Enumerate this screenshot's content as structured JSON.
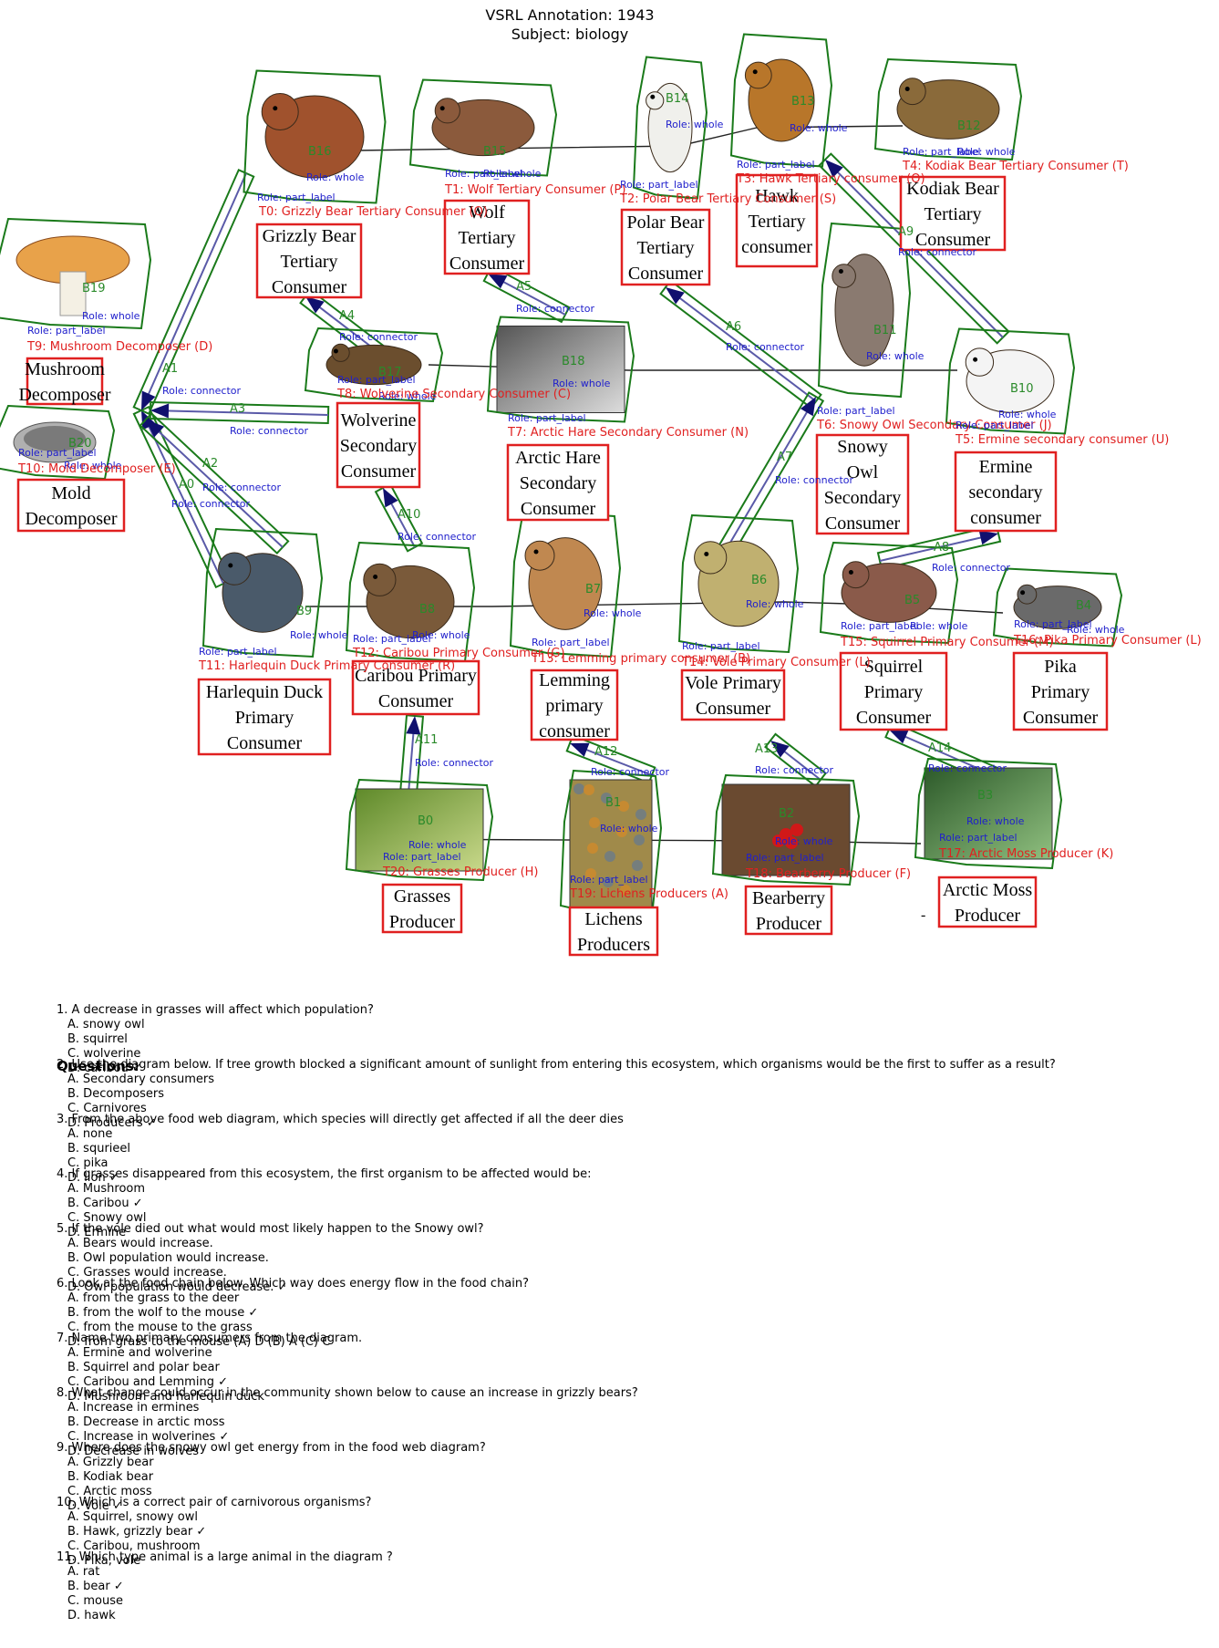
{
  "header": {
    "title_line1": "VSRL Annotation: 1943",
    "title_line2": "Subject: biology"
  },
  "colors": {
    "box": "#e02020",
    "outline": "#1a7a1a",
    "arrow": "#10106e",
    "tag_red": "#e02020",
    "tag_blue": "#2020cc",
    "tag_green": "#2a8a2a"
  },
  "organisms": [
    {
      "id": "grizzly",
      "box_lines": [
        "Grizzly Bear",
        "Tertiary",
        "Consumer"
      ],
      "blob": "B16",
      "tag": "T0: Grizzly Bear Tertiary Consumer (Q)",
      "icon": "bear-icon"
    },
    {
      "id": "wolf",
      "box_lines": [
        "Wolf",
        "Tertiary",
        "Consumer"
      ],
      "blob": "B15",
      "tag": "T1: Wolf Tertiary Consumer (P)",
      "icon": "wolf-icon"
    },
    {
      "id": "polar",
      "box_lines": [
        "Polar Bear",
        "Tertiary",
        "Consumer"
      ],
      "blob": "B14",
      "tag": "T2: Polar Bear Tertiary Consumer (S)",
      "icon": "polar-bear-icon"
    },
    {
      "id": "hawk",
      "box_lines": [
        "Hawk",
        "Tertiary",
        "consumer"
      ],
      "blob": "B13",
      "tag": "T3: Hawk Tertiary consumer (O)",
      "icon": "hawk-icon"
    },
    {
      "id": "kodiak",
      "box_lines": [
        "Kodiak Bear",
        "Tertiary",
        "Consumer"
      ],
      "blob": "B12",
      "tag": "T4: Kodiak Bear Tertiary Consumer (T)",
      "icon": "kodiak-bear-icon"
    },
    {
      "id": "mushroom",
      "box_lines": [
        "Mushroom",
        "Decomposer"
      ],
      "blob": "B19",
      "tag": "T9: Mushroom Decomposer (D)",
      "icon": "mushroom-icon"
    },
    {
      "id": "mold",
      "box_lines": [
        "Mold",
        "Decomposer"
      ],
      "blob": "B20",
      "tag": "T10: Mold Decomposer (E)",
      "icon": "mold-icon"
    },
    {
      "id": "wolverine",
      "box_lines": [
        "Wolverine",
        "Secondary",
        "Consumer"
      ],
      "blob": "B17",
      "tag": "T8: Wolverine Secondary Consumer (C)",
      "icon": "wolverine-icon"
    },
    {
      "id": "hare",
      "box_lines": [
        "Arctic Hare",
        "Secondary",
        "Consumer"
      ],
      "blob": "B18",
      "tag": "T7: Arctic Hare Secondary Consumer (N)",
      "icon": "hare-icon"
    },
    {
      "id": "owl",
      "box_lines": [
        "Snowy",
        "Owl",
        "Secondary",
        "Consumer"
      ],
      "blob": "B11",
      "tag": "T6: Snowy Owl Secondary Consumer (J)",
      "icon": "owl-icon"
    },
    {
      "id": "ermine",
      "box_lines": [
        "Ermine",
        "secondary",
        "consumer"
      ],
      "blob": "B10",
      "tag": "T5: Ermine secondary consumer (U)",
      "icon": "ermine-icon"
    },
    {
      "id": "duck",
      "box_lines": [
        "Harlequin Duck",
        "Primary",
        "Consumer"
      ],
      "blob": "B9",
      "tag": "T11: Harlequin Duck Primary Consumer (R)",
      "icon": "duck-icon"
    },
    {
      "id": "caribou",
      "box_lines": [
        "Caribou Primary",
        "Consumer"
      ],
      "blob": "B8",
      "tag": "T12: Caribou Primary Consumer (G)",
      "icon": "caribou-icon"
    },
    {
      "id": "lemming",
      "box_lines": [
        "Lemming",
        "primary",
        "consumer"
      ],
      "blob": "B7",
      "tag": "T13: Lemming primary consumer (B)",
      "icon": "lemming-icon"
    },
    {
      "id": "vole",
      "box_lines": [
        "Vole Primary",
        "Consumer"
      ],
      "blob": "B6",
      "tag": "T14: Vole Primary Consumer (L)",
      "icon": "vole-icon"
    },
    {
      "id": "squirrel",
      "box_lines": [
        "Squirrel",
        "Primary",
        "Consumer"
      ],
      "blob": "B5",
      "tag": "T15: Squirrel Primary Consumer (M)",
      "icon": "squirrel-icon"
    },
    {
      "id": "pika",
      "box_lines": [
        "Pika",
        "Primary",
        "Consumer"
      ],
      "blob": "B4",
      "tag": "T16: Pika Primary Consumer (L)",
      "icon": "pika-icon"
    },
    {
      "id": "grasses",
      "box_lines": [
        "Grasses",
        "Producer"
      ],
      "blob": "B0",
      "tag": "T20: Grasses Producer (H)",
      "icon": "grass-icon"
    },
    {
      "id": "lichens",
      "box_lines": [
        "Lichens",
        "Producers"
      ],
      "blob": "B1",
      "tag": "T19: Lichens Producers (A)",
      "icon": "lichen-icon"
    },
    {
      "id": "bearberry",
      "box_lines": [
        "Bearberry",
        "Producer"
      ],
      "blob": "B2",
      "tag": "T18: Bearberry Producer (F)",
      "icon": "berry-icon"
    },
    {
      "id": "moss",
      "box_lines": [
        "Arctic Moss",
        "Producer"
      ],
      "blob": "B3",
      "tag": "T17: Arctic Moss Producer (K)",
      "icon": "moss-icon"
    }
  ],
  "roles": {
    "whole": "Role: whole",
    "part_label": "Role: part_label",
    "connector": "Role: connector"
  },
  "arrows": [
    "A0",
    "A1",
    "A2",
    "A3",
    "A4",
    "A5",
    "A6",
    "A7",
    "A8",
    "A9",
    "A10",
    "A11",
    "A12",
    "A13",
    "A14"
  ],
  "stray_dash": "-",
  "questions_heading": "Questions:",
  "questions": [
    {
      "q": "1. A decrease in grasses will affect which population?",
      "options": [
        "A. snowy owl",
        "B. squirrel",
        "C. wolverine",
        "D. caribou ✓"
      ]
    },
    {
      "q": "2. Use the diagram below. If tree growth blocked a significant amount of sunlight from entering this ecosystem, which organisms would be the first to suffer as a result?",
      "options": [
        "A. Secondary consumers",
        "B. Decomposers",
        "C. Carnivores",
        "D. Producers ✓"
      ]
    },
    {
      "q": "3. From the above food web diagram, which species will directly get affected if all the deer dies",
      "options": [
        "A. none",
        "B. squrieel",
        "C. pika",
        "D. lion ✓"
      ]
    },
    {
      "q": "4. If grasses disappeared from this ecosystem, the first organism to be affected would be:",
      "options": [
        "A. Mushroom",
        "B. Caribou ✓",
        "C. Snowy owl",
        "D. Ermine"
      ]
    },
    {
      "q": "5. If the vole died out what would most likely happen to the Snowy owl?",
      "options": [
        "A. Bears would increase.",
        "B. Owl population would increase.",
        "C. Grasses would increase.",
        "D. Owl population would decrease. ✓"
      ]
    },
    {
      "q": "6. Look at the food chain below. Which way does energy flow in the food chain?",
      "options": [
        "A. from the grass to the deer",
        "B. from the wolf to the mouse ✓",
        "C. from the mouse to the grass",
        "D. from grass to the mouse (A) D (B) A (C) C"
      ]
    },
    {
      "q": "7. Name two primary consumers from the diagram.",
      "options": [
        "A. Ermine and wolverine",
        "B. Squirrel and polar bear",
        "C. Caribou and Lemming ✓",
        "D. Mushroom and harlequin duck"
      ]
    },
    {
      "q": "8. What change could occur in the community shown below to cause an increase in grizzly bears?",
      "options": [
        "A. Increase in ermines",
        "B. Decrease in arctic moss",
        "C. Increase in wolverines ✓",
        "D. Decrease in wolves"
      ]
    },
    {
      "q": "9. Where does the snowy owl get energy from in the food web diagram?",
      "options": [
        "A. Grizzly bear",
        "B. Kodiak bear",
        "C. Arctic moss",
        "D. Vole ✓"
      ]
    },
    {
      "q": "10. Which is a correct pair of carnivorous organisms?",
      "options": [
        "A. Squirrel, snowy owl",
        "B. Hawk, grizzly bear ✓",
        "C. Caribou, mushroom",
        "D. Pika, vole"
      ]
    },
    {
      "q": "11. Which type animal is a large animal in the diagram ?",
      "options": [
        "A. rat",
        "B. bear ✓",
        "C. mouse",
        "D. hawk"
      ]
    }
  ]
}
